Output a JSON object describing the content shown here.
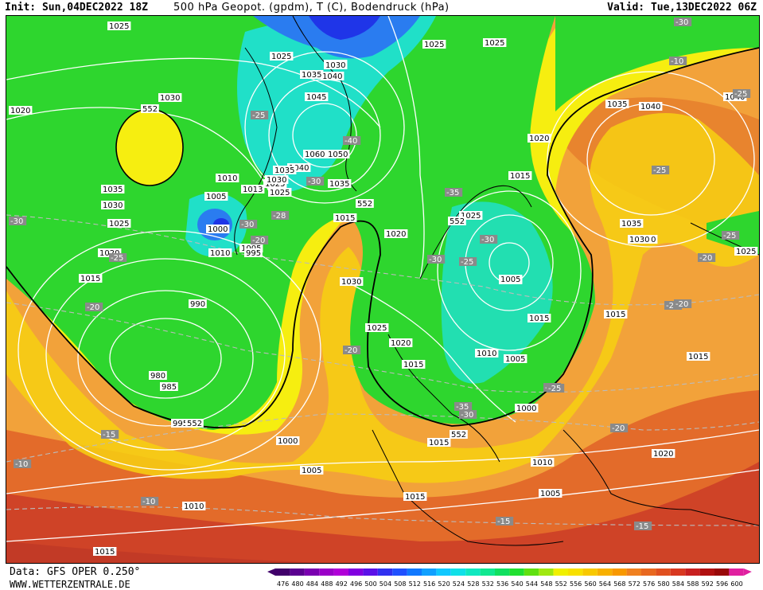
{
  "header": {
    "init": "Init: Sun,04DEC2022 18Z",
    "title": "500 hPa Geopot. (gpdm), T (C), Bodendruck (hPa)",
    "valid": "Valid: Tue,13DEC2022 06Z"
  },
  "footer": {
    "source": "Data: GFS OPER 0.250°",
    "website": "WWW.WETTERZENTRALE.DE"
  },
  "legend": {
    "values": [
      "476",
      "480",
      "484",
      "488",
      "492",
      "496",
      "500",
      "504",
      "508",
      "512",
      "516",
      "520",
      "524",
      "528",
      "532",
      "536",
      "540",
      "544",
      "548",
      "552",
      "556",
      "560",
      "564",
      "568",
      "572",
      "576",
      "580",
      "584",
      "588",
      "592",
      "596",
      "600"
    ],
    "colors": [
      "#40006a",
      "#5a0090",
      "#7a00b0",
      "#9a00c8",
      "#b000d8",
      "#8000e0",
      "#5a10e8",
      "#3030f0",
      "#2050ff",
      "#1078ff",
      "#10a0ff",
      "#10c8ff",
      "#10e0e8",
      "#10e8c0",
      "#10e890",
      "#10e060",
      "#20e030",
      "#60e010",
      "#a0e810",
      "#f0f000",
      "#f8e000",
      "#f8c800",
      "#f8b000",
      "#f89800",
      "#f08020",
      "#e86820",
      "#e05020",
      "#d83820",
      "#c82020",
      "#b01010",
      "#980808",
      "#e020a0"
    ],
    "arrow_left": "#40006a",
    "arrow_right": "#e020a0"
  },
  "map": {
    "icons": [
      "coastline",
      "isobar",
      "isotherm",
      "geopotential-fill"
    ],
    "colors": {
      "green": "#2ed62e",
      "cyan": "#20e0c8",
      "blue": "#2a7cf0",
      "darkblue": "#1f35e8",
      "yellow": "#f6ee10",
      "orange": "#f2a23a",
      "deeporange": "#e36b2a",
      "red": "#cf4327",
      "isobar": "#ffffff",
      "isotherm": "#bbbbbb"
    },
    "pressure_labels": [
      "1025",
      "1030",
      "1025",
      "1020",
      "1030",
      "552",
      "1035",
      "1030",
      "1025",
      "1020",
      "1015",
      "1005",
      "1010",
      "1013",
      "1025",
      "1035",
      "1000",
      "1005",
      "995",
      "1045",
      "1040",
      "1035",
      "1030",
      "1060",
      "1050",
      "1040",
      "1035",
      "1030",
      "1025",
      "1020",
      "1015",
      "552",
      "1025",
      "1010",
      "1005",
      "990",
      "980",
      "985",
      "995",
      "552",
      "1000",
      "1005",
      "1010",
      "1015",
      "1030",
      "1025",
      "1020",
      "1015",
      "1010",
      "1005",
      "1000",
      "1015",
      "552",
      "1015",
      "1010",
      "1005",
      "1015",
      "1025",
      "1030",
      "1035",
      "1040",
      "1040",
      "1035",
      "1030",
      "1025",
      "1020",
      "1025",
      "552",
      "1015",
      "1015",
      "1020",
      "1015",
      "1005"
    ],
    "temperature_labels": [
      "-30",
      "-25",
      "-20",
      "-15",
      "-10",
      "-10",
      "-25",
      "-30",
      "-20",
      "-28",
      "-30",
      "-40",
      "-35",
      "-30",
      "-25",
      "-30",
      "-35",
      "-30",
      "-20",
      "-20",
      "-25",
      "-25",
      "-20",
      "-20",
      "-15",
      "-15",
      "-10",
      "-30",
      "-25",
      "-20",
      "-20",
      "-25"
    ]
  }
}
